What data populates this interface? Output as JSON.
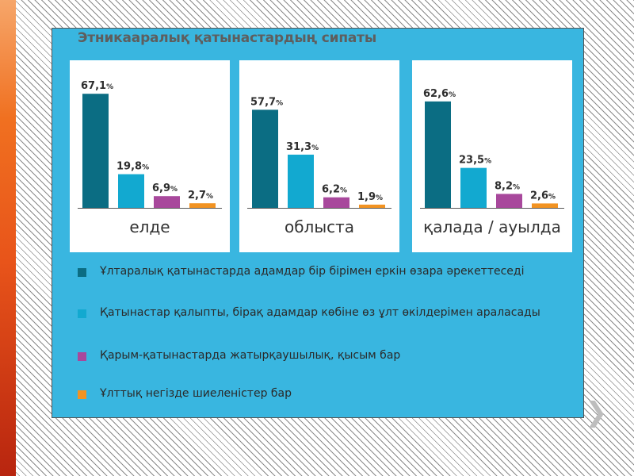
{
  "title": "Этникааралық қатынастардың сипаты",
  "colors": {
    "slide_bg": "#39b6e0",
    "series": [
      "#0b6d83",
      "#12a9d0",
      "#a8489c",
      "#f29322"
    ]
  },
  "legend": [
    {
      "label": "Ұлтаралық қатынастарда адамдар бір бірімен еркін өзара әрекеттеседі"
    },
    {
      "label": "Қатынастар қалыпты, бірақ адамдар көбіне өз ұлт өкілдерімен араласады"
    },
    {
      "label": "Қарым-қатынастарда жатырқаушылық, қысым бар"
    },
    {
      "label": "Ұлттық негізде шиеленістер бар"
    }
  ],
  "chart_data": [
    {
      "type": "bar",
      "title": "елде",
      "categories": [
        "1",
        "2",
        "3",
        "4"
      ],
      "values": [
        67.1,
        19.8,
        6.9,
        2.7
      ],
      "labels": [
        "67,1",
        "19,8",
        "6,9",
        "2,7"
      ],
      "unit": "%",
      "ylim": [
        0,
        70
      ]
    },
    {
      "type": "bar",
      "title": "облыста",
      "categories": [
        "1",
        "2",
        "3",
        "4"
      ],
      "values": [
        57.7,
        31.3,
        6.2,
        1.9
      ],
      "labels": [
        "57,7",
        "31,3",
        "6,2",
        "1,9"
      ],
      "unit": "%",
      "ylim": [
        0,
        70
      ]
    },
    {
      "type": "bar",
      "title": "қалада / ауылда",
      "categories": [
        "1",
        "2",
        "3",
        "4"
      ],
      "values": [
        62.6,
        23.5,
        8.2,
        2.6
      ],
      "labels": [
        "62,6",
        "23,5",
        "8,2",
        "2,6"
      ],
      "unit": "%",
      "ylim": [
        0,
        70
      ]
    }
  ],
  "next_icon": "chevron-right-icon"
}
